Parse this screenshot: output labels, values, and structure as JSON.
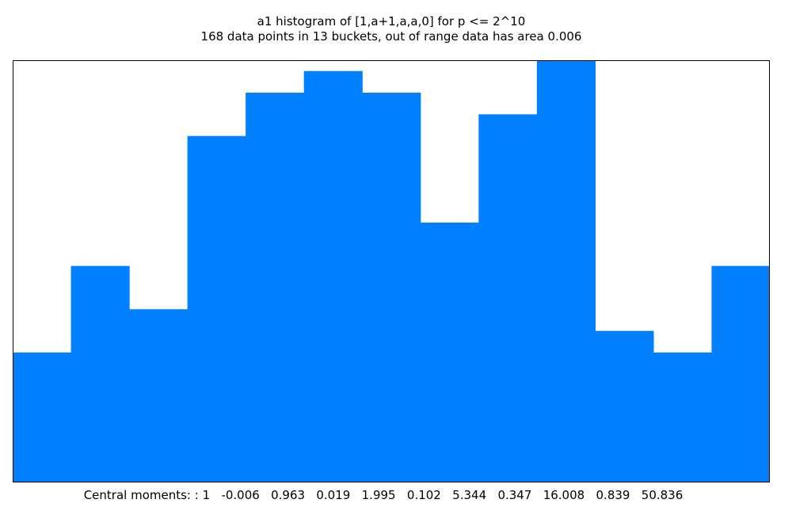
{
  "chart_data": {
    "type": "bar",
    "title": "a1 histogram of [1,a+1,a,a,0] for p <= 2^10",
    "subtitle": "168 data points in 13 buckets, out of range data has area 0.006",
    "values": [
      12,
      20,
      16,
      32,
      36,
      38,
      36,
      24,
      34,
      39,
      14,
      12,
      20
    ],
    "ylim": [
      0,
      39
    ],
    "bar_color": "#0080ff",
    "frame_color": "#000000",
    "grid": false,
    "legend": "none",
    "footer_label": "Central moments: :",
    "central_moments": [
      "1",
      "-0.006",
      "0.963",
      "0.019",
      "1.995",
      "0.102",
      "5.344",
      "0.347",
      "16.008",
      "0.839",
      "50.836"
    ]
  }
}
